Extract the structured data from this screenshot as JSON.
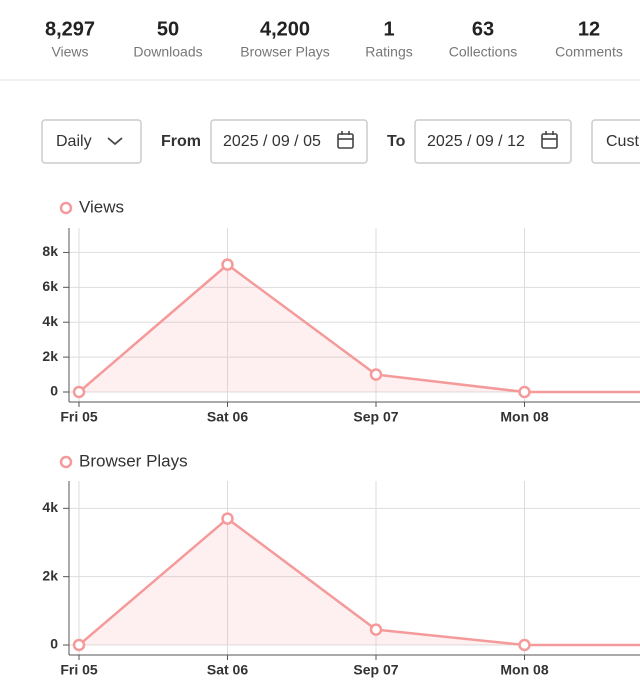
{
  "stats": [
    {
      "value": "8,297",
      "label": "Views"
    },
    {
      "value": "50",
      "label": "Downloads"
    },
    {
      "value": "4,200",
      "label": "Browser Plays"
    },
    {
      "value": "1",
      "label": "Ratings"
    },
    {
      "value": "63",
      "label": "Collections"
    },
    {
      "value": "12",
      "label": "Comments"
    }
  ],
  "controls": {
    "interval": "Daily",
    "from_label": "From",
    "from_date": "2025 / 09 / 05",
    "to_label": "To",
    "to_date": "2025 / 09 / 12",
    "range": "Cust"
  },
  "chart_data": [
    {
      "type": "line",
      "categories": [
        "Fri 05",
        "Sat 06",
        "Sep 07",
        "Mon 08",
        null
      ],
      "series": [
        {
          "name": "Views",
          "color": "#f59a9a",
          "values": [
            0,
            7300,
            1000,
            0,
            0
          ]
        }
      ],
      "ylim": [
        0,
        9400
      ],
      "yticks": [
        0,
        {
          "value": 2000,
          "label": "2k"
        },
        {
          "value": 4000,
          "label": "4k"
        },
        {
          "value": 6000,
          "label": "6k"
        },
        {
          "value": 8000,
          "label": "8k"
        }
      ],
      "grid": true
    },
    {
      "type": "line",
      "categories": [
        "Fri 05",
        "Sat 06",
        "Sep 07",
        "Mon 08",
        null
      ],
      "series": [
        {
          "name": "Browser Plays",
          "color": "#f59a9a",
          "values": [
            0,
            3700,
            450,
            0,
            0
          ]
        }
      ],
      "ylim": [
        0,
        4800
      ],
      "yticks": [
        0,
        {
          "value": 2000,
          "label": "2k"
        },
        {
          "value": 4000,
          "label": "4k"
        }
      ],
      "grid": true
    }
  ]
}
